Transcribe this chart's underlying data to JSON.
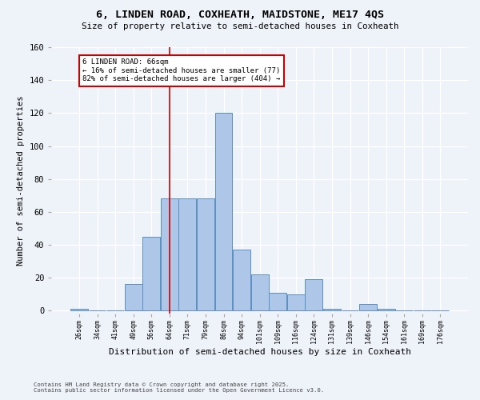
{
  "title_line1": "6, LINDEN ROAD, COXHEATH, MAIDSTONE, ME17 4QS",
  "title_line2": "Size of property relative to semi-detached houses in Coxheath",
  "xlabel": "Distribution of semi-detached houses by size in Coxheath",
  "ylabel": "Number of semi-detached properties",
  "footer_line1": "Contains HM Land Registry data © Crown copyright and database right 2025.",
  "footer_line2": "Contains public sector information licensed under the Open Government Licence v3.0.",
  "bin_labels": [
    "26sqm",
    "34sqm",
    "41sqm",
    "49sqm",
    "56sqm",
    "64sqm",
    "71sqm",
    "79sqm",
    "86sqm",
    "94sqm",
    "101sqm",
    "109sqm",
    "116sqm",
    "124sqm",
    "131sqm",
    "139sqm",
    "146sqm",
    "154sqm",
    "161sqm",
    "169sqm",
    "176sqm"
  ],
  "bar_values": [
    1,
    0,
    0,
    16,
    45,
    68,
    68,
    68,
    120,
    37,
    22,
    11,
    10,
    19,
    1,
    0,
    4,
    1,
    0,
    0,
    0
  ],
  "bar_color": "#aec6e8",
  "bar_edge_color": "#5a8fc0",
  "subject_bin_index": 5,
  "annotation_title": "6 LINDEN ROAD: 66sqm",
  "annotation_line2": "← 16% of semi-detached houses are smaller (77)",
  "annotation_line3": "82% of semi-detached houses are larger (404) →",
  "annotation_box_color": "#ffffff",
  "annotation_box_edge_color": "#cc0000",
  "red_line_color": "#cc0000",
  "background_color": "#eef2f9",
  "ylim": [
    0,
    160
  ],
  "yticks": [
    0,
    20,
    40,
    60,
    80,
    100,
    120,
    140,
    160
  ]
}
